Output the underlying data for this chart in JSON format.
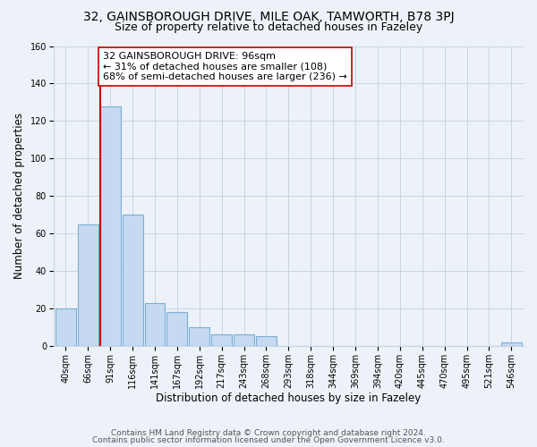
{
  "title": "32, GAINSBOROUGH DRIVE, MILE OAK, TAMWORTH, B78 3PJ",
  "subtitle": "Size of property relative to detached houses in Fazeley",
  "xlabel": "Distribution of detached houses by size in Fazeley",
  "ylabel": "Number of detached properties",
  "bar_labels": [
    "40sqm",
    "66sqm",
    "91sqm",
    "116sqm",
    "141sqm",
    "167sqm",
    "192sqm",
    "217sqm",
    "243sqm",
    "268sqm",
    "293sqm",
    "318sqm",
    "344sqm",
    "369sqm",
    "394sqm",
    "420sqm",
    "445sqm",
    "470sqm",
    "495sqm",
    "521sqm",
    "546sqm"
  ],
  "bar_values": [
    20,
    65,
    128,
    70,
    23,
    18,
    10,
    6,
    6,
    5,
    0,
    0,
    0,
    0,
    0,
    0,
    0,
    0,
    0,
    0,
    2
  ],
  "bar_color": "#c5d9f0",
  "bar_edge_color": "#7bafd4",
  "highlight_line_color": "#cc0000",
  "annotation_text": "32 GAINSBOROUGH DRIVE: 96sqm\n← 31% of detached houses are smaller (108)\n68% of semi-detached houses are larger (236) →",
  "annotation_box_color": "#ffffff",
  "annotation_box_edge": "#cc0000",
  "ylim": [
    0,
    160
  ],
  "yticks": [
    0,
    20,
    40,
    60,
    80,
    100,
    120,
    140,
    160
  ],
  "footer_line1": "Contains HM Land Registry data © Crown copyright and database right 2024.",
  "footer_line2": "Contains public sector information licensed under the Open Government Licence v3.0.",
  "bg_color": "#edf2f9",
  "grid_color": "#c8d4e4",
  "title_fontsize": 10,
  "subtitle_fontsize": 9,
  "axis_label_fontsize": 8.5,
  "tick_fontsize": 7,
  "annotation_fontsize": 8,
  "footer_fontsize": 6.5
}
